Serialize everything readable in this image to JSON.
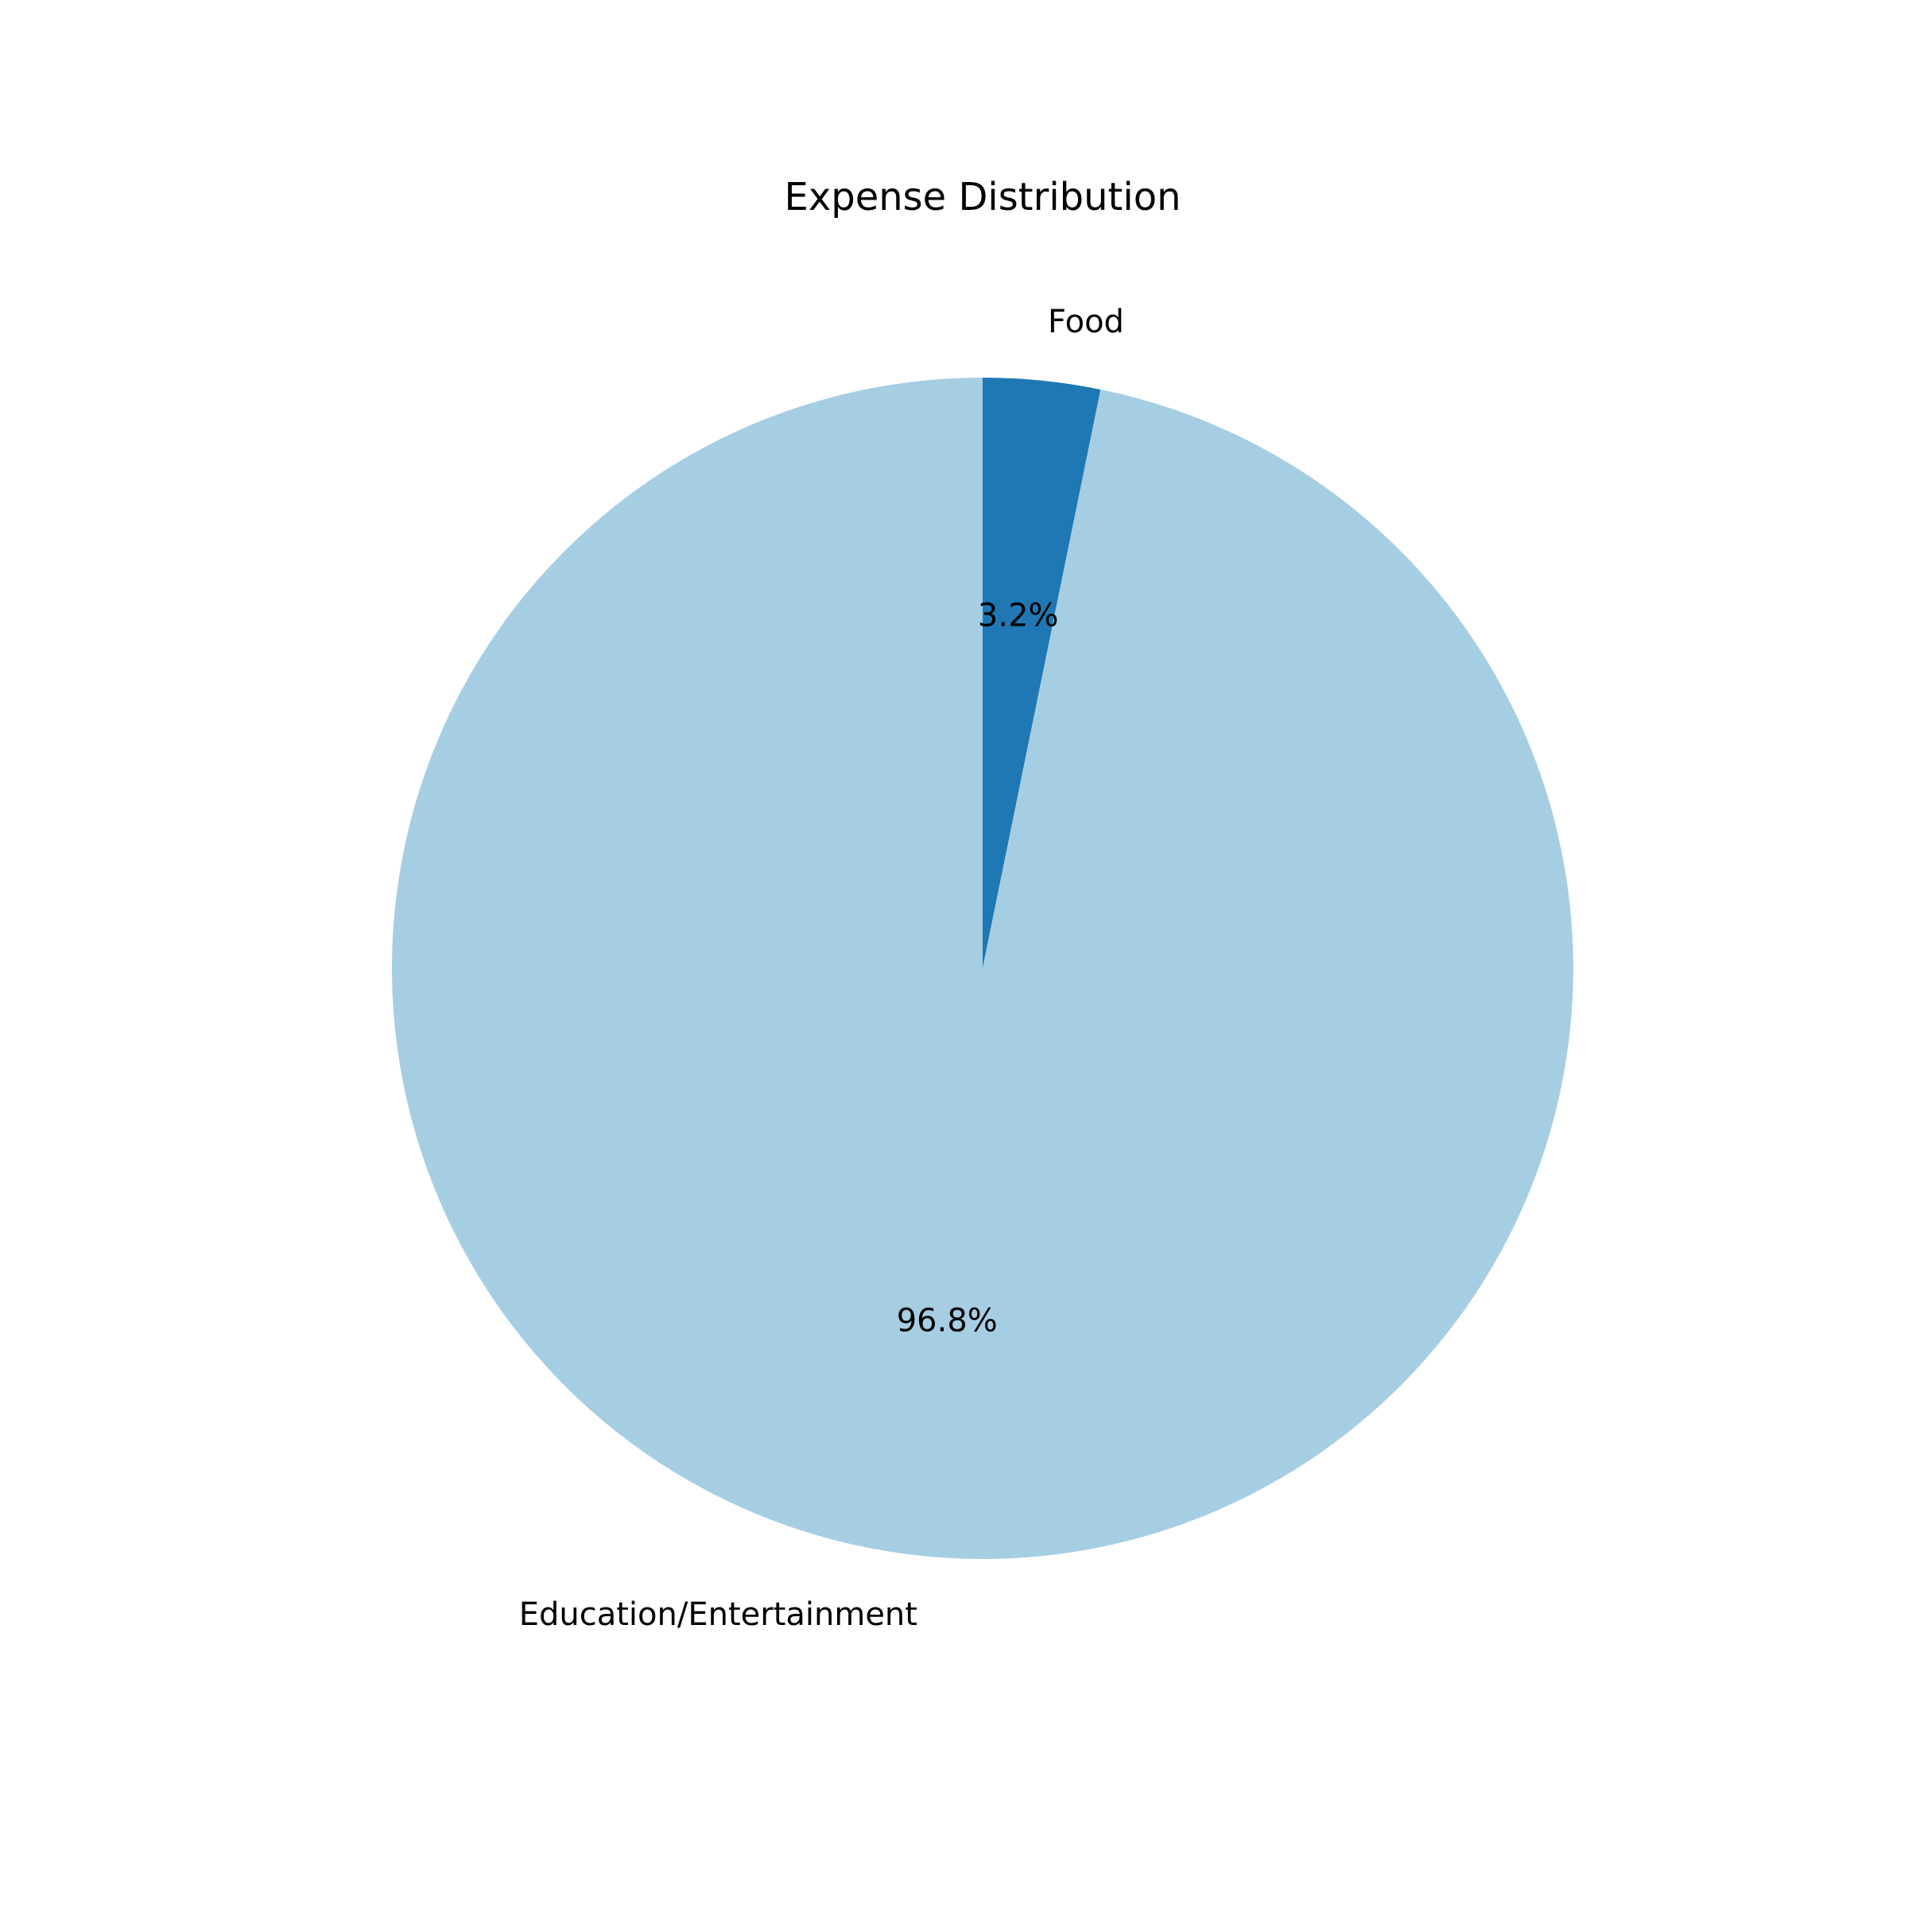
{
  "chart_data": {
    "type": "pie",
    "title": "Expense Distribution",
    "start_angle_deg": 90,
    "direction": "clockwise",
    "slices": [
      {
        "label": "Food",
        "value": 3.2,
        "pct_label": "3.2%",
        "color": "#1f78b4"
      },
      {
        "label": "Education/Entertainment",
        "value": 96.8,
        "pct_label": "96.8%",
        "color": "#a6cee3"
      }
    ]
  }
}
